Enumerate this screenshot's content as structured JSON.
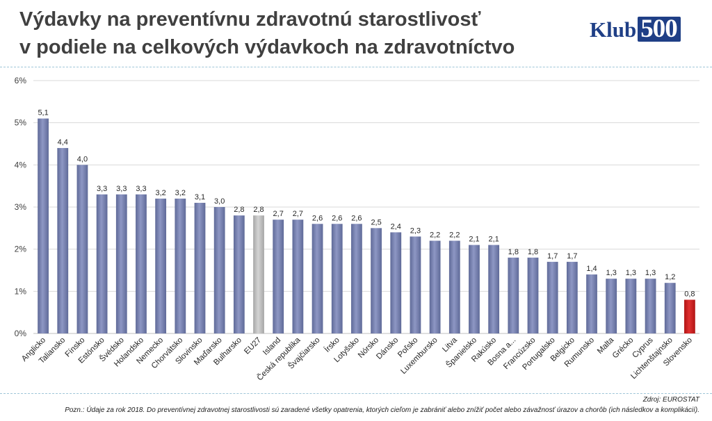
{
  "title_line1": "Výdavky na preventívnu zdravotnú starostlivosť",
  "title_line2": "v podiele na celkových výdavkoch na zdravotníctvo",
  "logo": {
    "text": "Klub",
    "number": "500"
  },
  "source": "Zdroj: EUROSTAT",
  "note": "Pozn.: Údaje za rok 2018. Do preventívnej zdravotnej starostlivosti sú zaradené všetky opatrenia, ktorých cieľom je zabrániť alebo znížiť počet alebo závažnosť úrazov a chorôb (ich následkov a komplikácií).",
  "colors": {
    "bar": "#5f6a98",
    "bar_eu": "#a6a6a6",
    "bar_highlight": "#b01515",
    "grid": "#d9d9d9",
    "text": "#404040"
  },
  "chart_data": {
    "type": "bar",
    "categories": [
      "Anglicko",
      "Taliansko",
      "Fínsko",
      "Estónsko",
      "Švédsko",
      "Holandsko",
      "Nemecko",
      "Chorvátsko",
      "Slovinsko",
      "Maďarsko",
      "Bulharsko",
      "EU27",
      "Island",
      "Česká republika",
      "Švajčiarsko",
      "Írsko",
      "Lotyšsko",
      "Nórsko",
      "Dánsko",
      "Poľsko",
      "Luxembursko",
      "Litva",
      "Španielsko",
      "Rakúsko",
      "Bosna a...",
      "Francúzsko",
      "Portugalsko",
      "Belgicko",
      "Rumunsko",
      "Malta",
      "Grécko",
      "Cyprus",
      "Lichtenštajnsko",
      "Slovensko"
    ],
    "values": [
      5.1,
      4.4,
      4.0,
      3.3,
      3.3,
      3.3,
      3.2,
      3.2,
      3.1,
      3.0,
      2.8,
      2.8,
      2.7,
      2.7,
      2.6,
      2.6,
      2.6,
      2.5,
      2.4,
      2.3,
      2.2,
      2.2,
      2.1,
      2.1,
      1.8,
      1.8,
      1.7,
      1.7,
      1.4,
      1.3,
      1.3,
      1.3,
      1.2,
      0.8
    ],
    "data_labels": [
      "5,1",
      "4,4",
      "4,0",
      "3,3",
      "3,3",
      "3,3",
      "3,2",
      "3,2",
      "3,1",
      "3,0",
      "2,8",
      "2,8",
      "2,7",
      "2,7",
      "2,6",
      "2,6",
      "2,6",
      "2,5",
      "2,4",
      "2,3",
      "2,2",
      "2,2",
      "2,1",
      "2,1",
      "1,8",
      "1,8",
      "1,7",
      "1,7",
      "1,4",
      "1,3",
      "1,3",
      "1,3",
      "1,2",
      "0,8"
    ],
    "highlight": {
      "EU27": "eu",
      "Slovensko": "highlight"
    },
    "yticks": [
      "0%",
      "1%",
      "2%",
      "3%",
      "4%",
      "5%",
      "6%"
    ],
    "ylim": [
      0,
      6
    ],
    "grid": true,
    "legend": false
  }
}
